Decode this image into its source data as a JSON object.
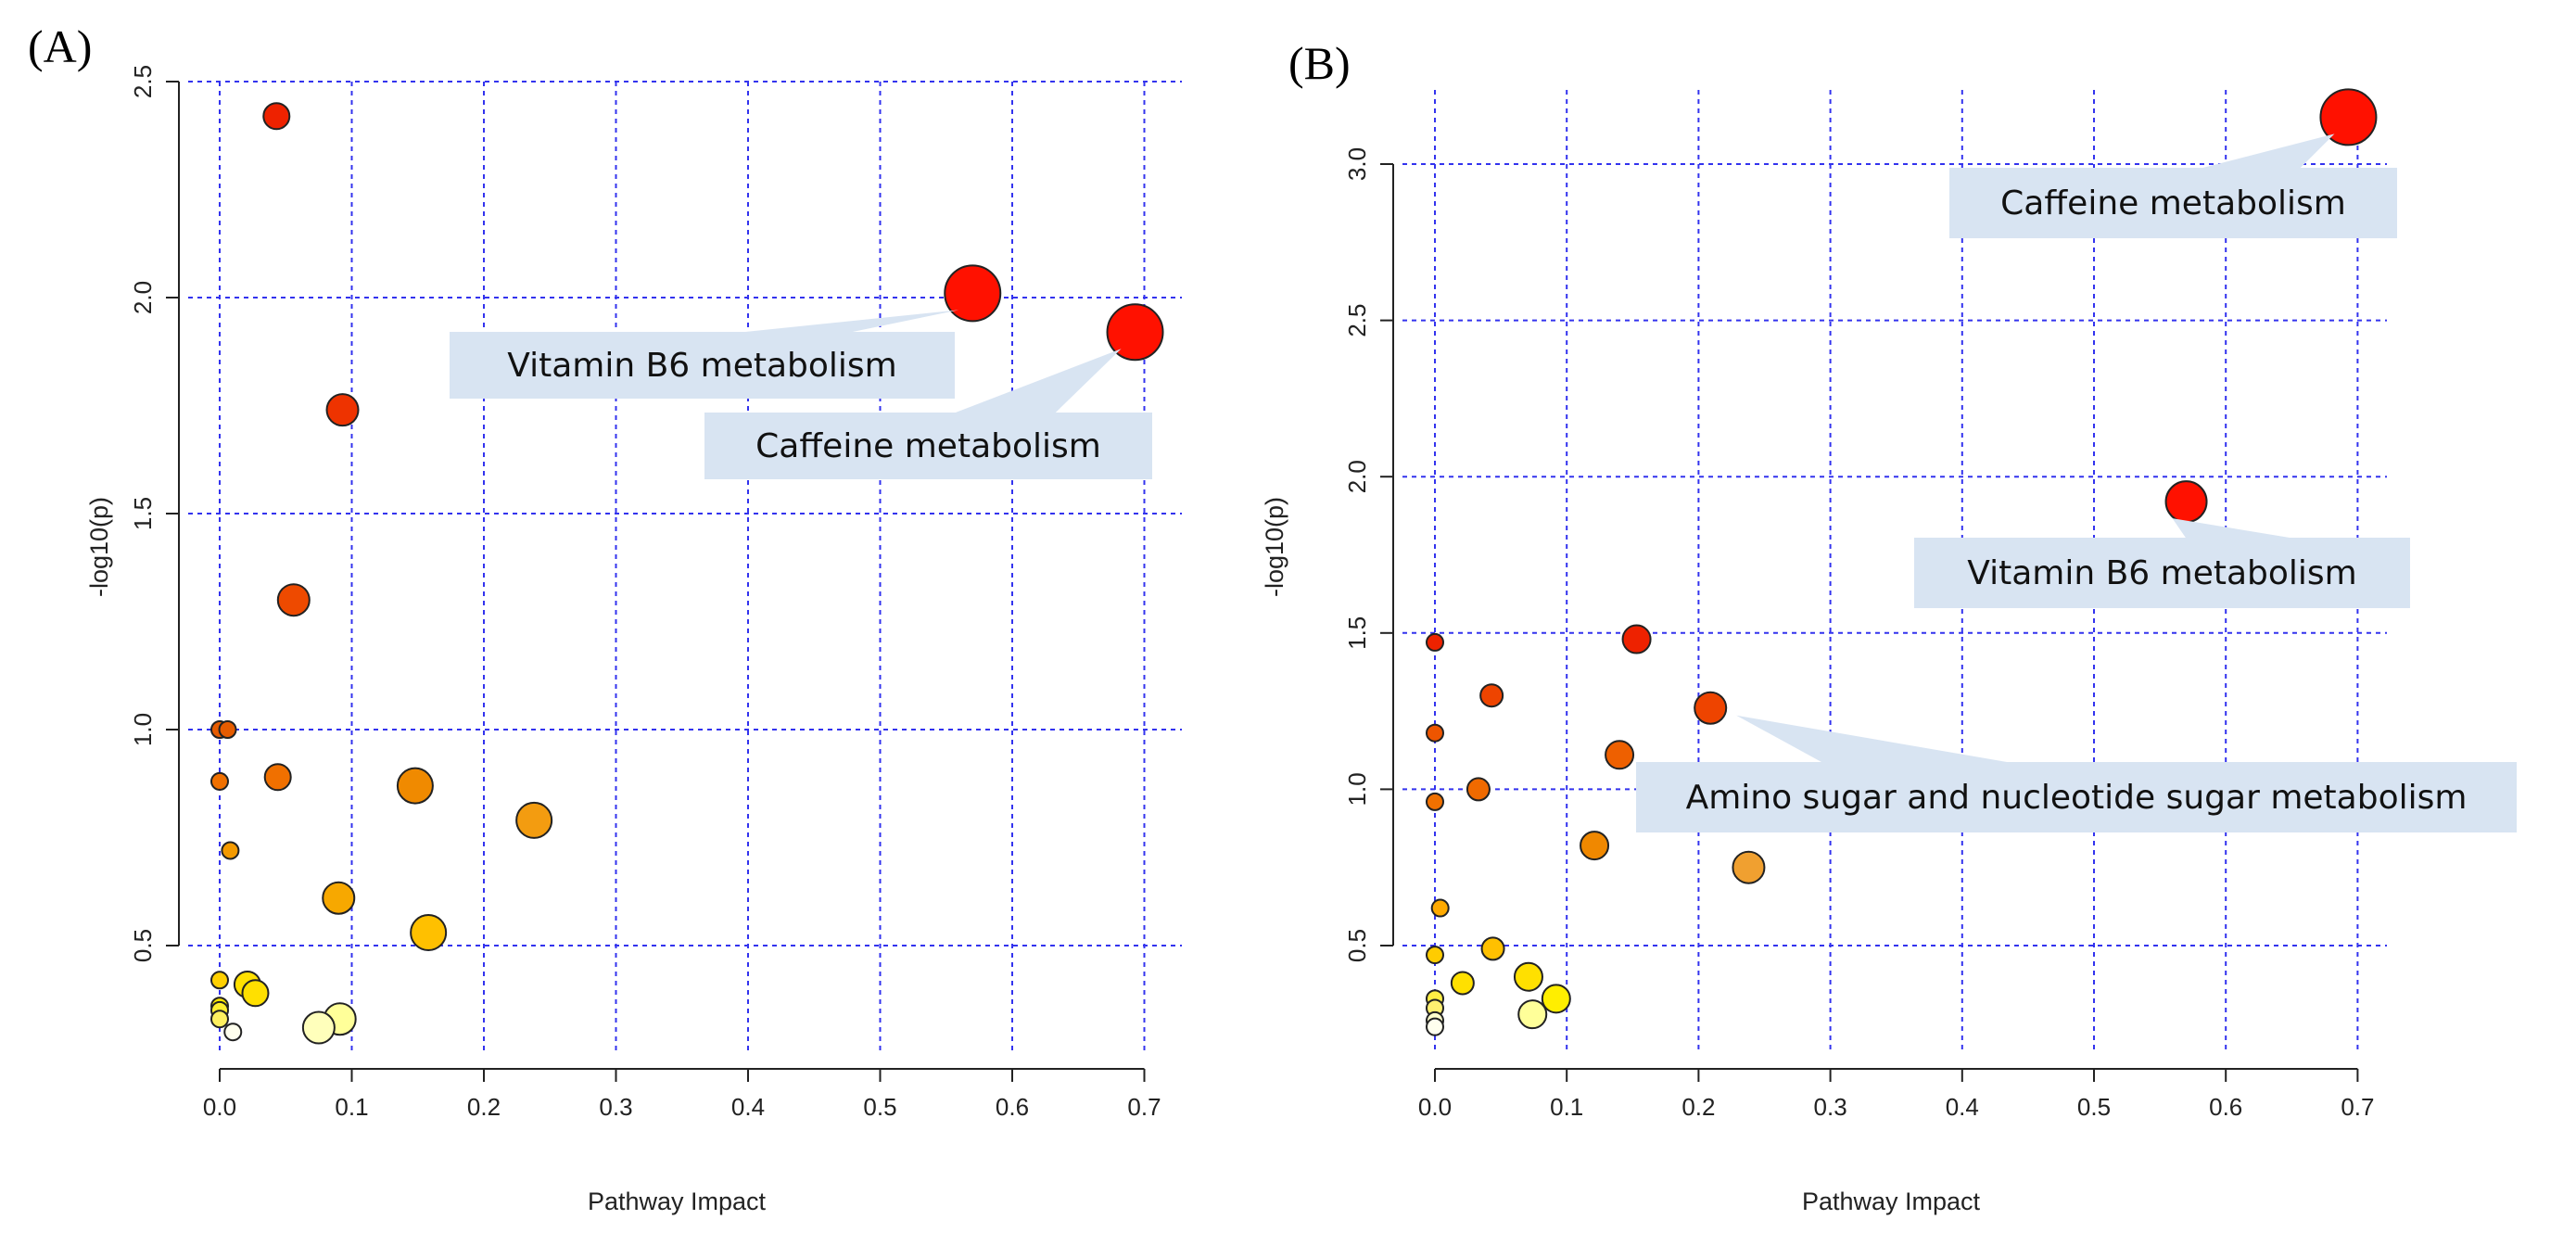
{
  "chart_data": [
    {
      "panel": "(A)",
      "type": "scatter",
      "xlabel": "Pathway Impact",
      "ylabel": "-log10(p)",
      "xlim": [
        0.0,
        0.7
      ],
      "ylim": [
        0.25,
        2.5
      ],
      "xticks": [
        "0.0",
        "0.1",
        "0.2",
        "0.3",
        "0.4",
        "0.5",
        "0.6",
        "0.7"
      ],
      "xtick_values": [
        0.0,
        0.1,
        0.2,
        0.3,
        0.4,
        0.5,
        0.6,
        0.7
      ],
      "yticks": [
        "0.5",
        "1.0",
        "1.5",
        "2.0",
        "2.5"
      ],
      "ytick_values": [
        0.5,
        1.0,
        1.5,
        2.0,
        2.5
      ],
      "grid": true,
      "points": [
        {
          "x": 0.043,
          "y": 2.42,
          "size": 1,
          "color": "#ee2200"
        },
        {
          "x": 0.57,
          "y": 2.01,
          "size": 5,
          "color": "#ff1100"
        },
        {
          "x": 0.693,
          "y": 1.92,
          "size": 5,
          "color": "#ff1100"
        },
        {
          "x": 0.093,
          "y": 1.74,
          "size": 2,
          "color": "#ee3300"
        },
        {
          "x": 0.056,
          "y": 1.3,
          "size": 2,
          "color": "#ee4a00"
        },
        {
          "x": 0.0,
          "y": 1.0,
          "size": 0,
          "color": "#e65c00"
        },
        {
          "x": 0.006,
          "y": 1.0,
          "size": 0,
          "color": "#e65c00"
        },
        {
          "x": 0.044,
          "y": 0.89,
          "size": 1,
          "color": "#f07000"
        },
        {
          "x": 0.0,
          "y": 0.88,
          "size": 0,
          "color": "#f07000"
        },
        {
          "x": 0.148,
          "y": 0.87,
          "size": 3,
          "color": "#f08a00"
        },
        {
          "x": 0.238,
          "y": 0.79,
          "size": 3,
          "color": "#f39c10"
        },
        {
          "x": 0.008,
          "y": 0.72,
          "size": 0,
          "color": "#f49a00"
        },
        {
          "x": 0.09,
          "y": 0.61,
          "size": 2,
          "color": "#f7a800"
        },
        {
          "x": 0.158,
          "y": 0.53,
          "size": 3,
          "color": "#ffc000"
        },
        {
          "x": 0.0,
          "y": 0.42,
          "size": 0,
          "color": "#ffd000"
        },
        {
          "x": 0.021,
          "y": 0.41,
          "size": 1,
          "color": "#ffe000"
        },
        {
          "x": 0.027,
          "y": 0.39,
          "size": 1,
          "color": "#ffe000"
        },
        {
          "x": 0.0,
          "y": 0.36,
          "size": 0,
          "color": "#ffe800"
        },
        {
          "x": 0.0,
          "y": 0.35,
          "size": 0,
          "color": "#ffee30"
        },
        {
          "x": 0.0,
          "y": 0.33,
          "size": 0,
          "color": "#fff060"
        },
        {
          "x": 0.091,
          "y": 0.33,
          "size": 2,
          "color": "#ffff99"
        },
        {
          "x": 0.075,
          "y": 0.31,
          "size": 2,
          "color": "#ffffbb"
        },
        {
          "x": 0.01,
          "y": 0.3,
          "size": 0,
          "color": "#ffffee"
        }
      ],
      "annotations": [
        {
          "text": "Vitamin B6 metabolism",
          "x": 0.57,
          "y": 2.01
        },
        {
          "text": "Caffeine metabolism",
          "x": 0.693,
          "y": 1.92
        }
      ]
    },
    {
      "panel": "(B)",
      "type": "scatter",
      "xlabel": "Pathway Impact",
      "ylabel": "-log10(p)",
      "xlim": [
        0.0,
        0.7
      ],
      "ylim": [
        0.2,
        3.2
      ],
      "xticks": [
        "0.0",
        "0.1",
        "0.2",
        "0.3",
        "0.4",
        "0.5",
        "0.6",
        "0.7"
      ],
      "xtick_values": [
        0.0,
        0.1,
        0.2,
        0.3,
        0.4,
        0.5,
        0.6,
        0.7
      ],
      "yticks": [
        "0.5",
        "1.0",
        "1.5",
        "2.0",
        "2.5",
        "3.0"
      ],
      "ytick_values": [
        0.5,
        1.0,
        1.5,
        2.0,
        2.5,
        3.0
      ],
      "grid": true,
      "points": [
        {
          "x": 0.693,
          "y": 3.15,
          "size": 5,
          "color": "#ff1100"
        },
        {
          "x": 0.57,
          "y": 1.92,
          "size": 4,
          "color": "#ff1100"
        },
        {
          "x": 0.153,
          "y": 1.48,
          "size": 2,
          "color": "#ee2200"
        },
        {
          "x": 0.0,
          "y": 1.47,
          "size": 0,
          "color": "#ee2200"
        },
        {
          "x": 0.043,
          "y": 1.3,
          "size": 1,
          "color": "#ee4400"
        },
        {
          "x": 0.209,
          "y": 1.26,
          "size": 3,
          "color": "#ee4400"
        },
        {
          "x": 0.0,
          "y": 1.18,
          "size": 0,
          "color": "#ee5500"
        },
        {
          "x": 0.14,
          "y": 1.11,
          "size": 2,
          "color": "#ee6000"
        },
        {
          "x": 0.033,
          "y": 1.0,
          "size": 1,
          "color": "#f06a00"
        },
        {
          "x": 0.0,
          "y": 0.96,
          "size": 0,
          "color": "#f07000"
        },
        {
          "x": 0.121,
          "y": 0.82,
          "size": 2,
          "color": "#f08800"
        },
        {
          "x": 0.238,
          "y": 0.75,
          "size": 3,
          "color": "#f0a030"
        },
        {
          "x": 0.004,
          "y": 0.62,
          "size": 0,
          "color": "#ffaa00"
        },
        {
          "x": 0.044,
          "y": 0.49,
          "size": 1,
          "color": "#ffc000"
        },
        {
          "x": 0.0,
          "y": 0.47,
          "size": 0,
          "color": "#ffcc00"
        },
        {
          "x": 0.071,
          "y": 0.4,
          "size": 2,
          "color": "#ffe000"
        },
        {
          "x": 0.021,
          "y": 0.38,
          "size": 1,
          "color": "#ffe000"
        },
        {
          "x": 0.092,
          "y": 0.33,
          "size": 2,
          "color": "#ffee00"
        },
        {
          "x": 0.0,
          "y": 0.33,
          "size": 0,
          "color": "#ffee44"
        },
        {
          "x": 0.0,
          "y": 0.3,
          "size": 0,
          "color": "#fff070"
        },
        {
          "x": 0.074,
          "y": 0.28,
          "size": 2,
          "color": "#ffff99"
        },
        {
          "x": 0.0,
          "y": 0.26,
          "size": 0,
          "color": "#ffffcc"
        },
        {
          "x": 0.0,
          "y": 0.24,
          "size": 0,
          "color": "#ffffee"
        }
      ],
      "annotations": [
        {
          "text": "Caffeine metabolism",
          "x": 0.693,
          "y": 3.15
        },
        {
          "text": "Vitamin B6 metabolism",
          "x": 0.57,
          "y": 1.92
        },
        {
          "text": "Amino sugar and nucleotide sugar metabolism",
          "x": 0.209,
          "y": 1.26
        }
      ]
    }
  ]
}
